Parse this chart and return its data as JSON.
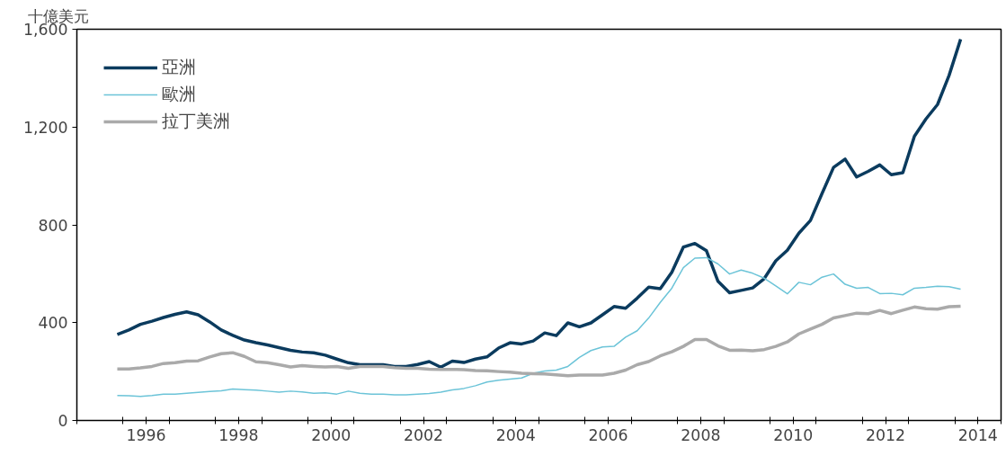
{
  "chart_data": {
    "type": "line",
    "ylabel": "十億美元",
    "x": [
      1995.875,
      1996.125,
      1996.375,
      1996.625,
      1996.875,
      1997.125,
      1997.375,
      1997.625,
      1997.875,
      1998.125,
      1998.375,
      1998.625,
      1998.875,
      1999.125,
      1999.375,
      1999.625,
      1999.875,
      2000.125,
      2000.375,
      2000.625,
      2000.875,
      2001.125,
      2001.375,
      2001.625,
      2001.875,
      2002.125,
      2002.375,
      2002.625,
      2002.875,
      2003.125,
      2003.375,
      2003.625,
      2003.875,
      2004.125,
      2004.375,
      2004.625,
      2004.875,
      2005.125,
      2005.375,
      2005.625,
      2005.875,
      2006.125,
      2006.375,
      2006.625,
      2006.875,
      2007.125,
      2007.375,
      2007.625,
      2007.875,
      2008.125,
      2008.375,
      2008.625,
      2008.875,
      2009.125,
      2009.375,
      2009.625,
      2009.875,
      2010.125,
      2010.375,
      2010.625,
      2010.875,
      2011.125,
      2011.375,
      2011.625,
      2011.875,
      2012.125,
      2012.375,
      2012.625,
      2012.875,
      2013.125,
      2013.375,
      2013.625,
      2013.875,
      2014.125
    ],
    "series": [
      {
        "name": "亞洲",
        "color": "#0b3b5e",
        "values": [
          352,
          370,
          393,
          406,
          421,
          434,
          444,
          432,
          403,
          370,
          348,
          329,
          318,
          309,
          298,
          287,
          280,
          277,
          267,
          251,
          236,
          228,
          228,
          228,
          221,
          221,
          229,
          241,
          218,
          243,
          237,
          251,
          260,
          296,
          318,
          313,
          325,
          358,
          347,
          399,
          383,
          399,
          432,
          466,
          459,
          500,
          545,
          539,
          606,
          709,
          724,
          694,
          569,
          522,
          532,
          542,
          580,
          653,
          696,
          766,
          818,
          928,
          1035,
          1069,
          996,
          1019,
          1045,
          1005,
          1013,
          1162,
          1233,
          1292,
          1411,
          1559
        ]
      },
      {
        "name": "歐洲",
        "color": "#6cc4d8",
        "values": [
          102,
          101,
          98,
          102,
          108,
          108,
          111,
          115,
          119,
          121,
          129,
          126,
          124,
          120,
          116,
          120,
          117,
          111,
          113,
          108,
          120,
          111,
          108,
          108,
          105,
          105,
          108,
          110,
          116,
          125,
          131,
          142,
          157,
          165,
          169,
          174,
          193,
          202,
          206,
          221,
          258,
          286,
          301,
          303,
          341,
          367,
          419,
          483,
          541,
          625,
          664,
          666,
          640,
          599,
          615,
          602,
          582,
          550,
          518,
          565,
          555,
          586,
          599,
          557,
          541,
          544,
          519,
          520,
          514,
          541,
          544,
          549,
          547,
          537
        ]
      },
      {
        "name": "拉丁美洲",
        "color": "#aaaaaa",
        "values": [
          211,
          211,
          215,
          221,
          233,
          236,
          243,
          244,
          260,
          273,
          277,
          262,
          240,
          236,
          228,
          219,
          224,
          221,
          219,
          221,
          213,
          221,
          221,
          221,
          216,
          213,
          213,
          210,
          209,
          209,
          208,
          204,
          203,
          200,
          198,
          193,
          191,
          190,
          187,
          183,
          186,
          186,
          186,
          193,
          206,
          228,
          241,
          264,
          281,
          303,
          331,
          331,
          305,
          287,
          288,
          285,
          290,
          303,
          321,
          354,
          374,
          393,
          419,
          429,
          439,
          437,
          450,
          437,
          451,
          464,
          457,
          455,
          465,
          467
        ]
      }
    ],
    "xlim": [
      1995,
      2015
    ],
    "xticks": [
      {
        "value": 1995,
        "label": null
      },
      {
        "value": 1996,
        "label": null
      },
      {
        "value": 1996.5,
        "label": "1996"
      },
      {
        "value": 1997,
        "label": null
      },
      {
        "value": 1998,
        "label": null
      },
      {
        "value": 1998.5,
        "label": "1998"
      },
      {
        "value": 1999,
        "label": null
      },
      {
        "value": 2000,
        "label": null
      },
      {
        "value": 2000.5,
        "label": "2000"
      },
      {
        "value": 2001,
        "label": null
      },
      {
        "value": 2002,
        "label": null
      },
      {
        "value": 2002.5,
        "label": "2002"
      },
      {
        "value": 2003,
        "label": null
      },
      {
        "value": 2004,
        "label": null
      },
      {
        "value": 2004.5,
        "label": "2004"
      },
      {
        "value": 2005,
        "label": null
      },
      {
        "value": 2006,
        "label": null
      },
      {
        "value": 2006.5,
        "label": "2006"
      },
      {
        "value": 2007,
        "label": null
      },
      {
        "value": 2008,
        "label": null
      },
      {
        "value": 2008.5,
        "label": "2008"
      },
      {
        "value": 2009,
        "label": null
      },
      {
        "value": 2010,
        "label": null
      },
      {
        "value": 2010.5,
        "label": "2010"
      },
      {
        "value": 2011,
        "label": null
      },
      {
        "value": 2012,
        "label": null
      },
      {
        "value": 2012.5,
        "label": "2012"
      },
      {
        "value": 2013,
        "label": null
      },
      {
        "value": 2014,
        "label": null
      },
      {
        "value": 2014.5,
        "label": "2014"
      },
      {
        "value": 2015,
        "label": null
      }
    ],
    "ylim": [
      0,
      1600
    ],
    "yticks": [
      0,
      {
        "value": 400,
        "label": "400"
      },
      {
        "value": 800,
        "label": "800"
      },
      {
        "value": 1200,
        "label": "1,200"
      },
      {
        "value": 1600,
        "label": "1,600"
      }
    ],
    "legend": "top left",
    "grid": false
  }
}
